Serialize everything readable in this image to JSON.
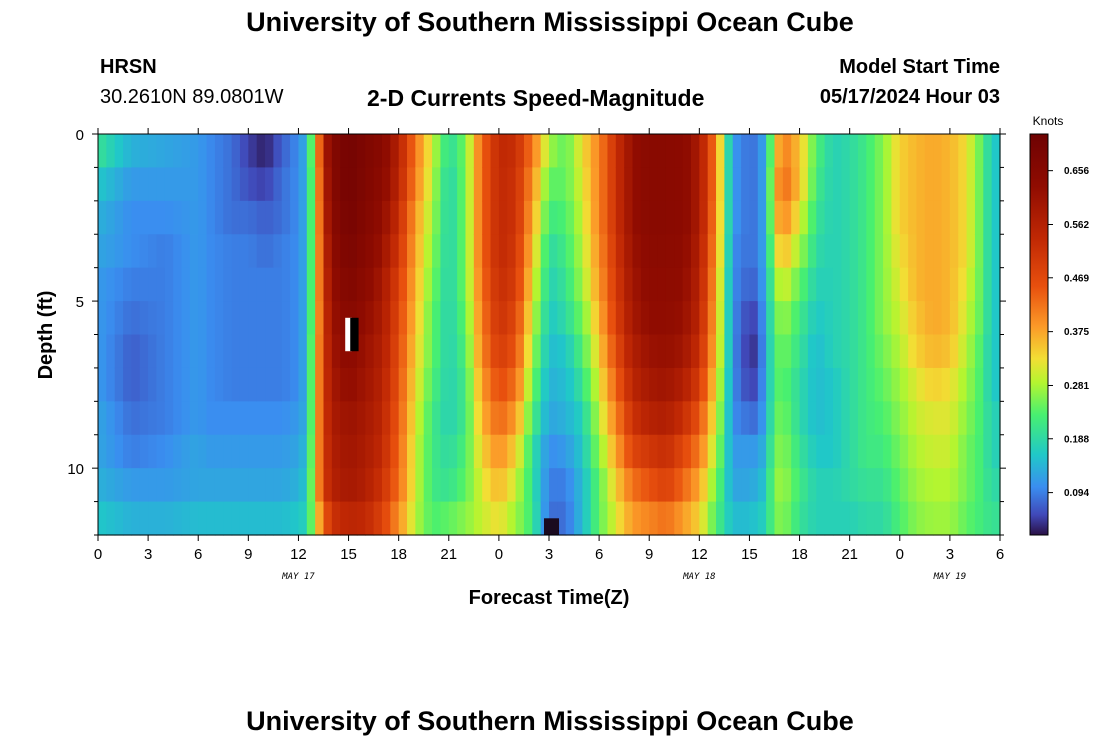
{
  "header": {
    "title": "University of Southern Mississippi Ocean Cube",
    "station": "HRSN",
    "coordinates": "30.2610N  89.0801W",
    "subtitle": "2-D Currents Speed-Magnitude",
    "model_start_label": "Model Start Time",
    "model_start_value": "05/17/2024 Hour 03"
  },
  "footer": {
    "title": "University of Southern Mississippi Ocean Cube"
  },
  "chart_data": {
    "type": "heatmap",
    "xlabel": "Forecast Time(Z)",
    "ylabel": "Depth (ft)",
    "x_tick_labels": [
      "0",
      "3",
      "6",
      "9",
      "12",
      "15",
      "18",
      "21",
      "0",
      "3",
      "6",
      "9",
      "12",
      "15",
      "18",
      "21",
      "0",
      "3",
      "6"
    ],
    "date_labels": [
      {
        "text": "MAY 17",
        "at_hour": 12
      },
      {
        "text": "MAY 18",
        "at_hour": 36
      },
      {
        "text": "MAY 19",
        "at_hour": 51
      }
    ],
    "xlim_hours": [
      0,
      54
    ],
    "y_ticks": [
      0,
      5,
      10
    ],
    "ylim_ft": [
      0,
      12
    ],
    "colorbar": {
      "unit": "Knots",
      "ticks": [
        0.094,
        0.188,
        0.281,
        0.375,
        0.469,
        0.562,
        0.656
      ],
      "range": [
        0.02,
        0.72
      ]
    },
    "depth_rows_ft": [
      0.5,
      1.5,
      2.5,
      3.5,
      4.5,
      5.5,
      6.5,
      7.5,
      8.5,
      9.5,
      10.5,
      11.5
    ],
    "profile_keys_hours": [
      0,
      2,
      4,
      6,
      6.5,
      8,
      9,
      10,
      11,
      12,
      12.5,
      13,
      13.5,
      14,
      15,
      16,
      17,
      18,
      19,
      20,
      21,
      22,
      23,
      24,
      25,
      26,
      27,
      28,
      29,
      30,
      31,
      32,
      33,
      34,
      35,
      36,
      37,
      37.5,
      38,
      39,
      39.5,
      40,
      40.5,
      41,
      42,
      43,
      44,
      45,
      46,
      47,
      48,
      49,
      50,
      51,
      52,
      53,
      53.5,
      54
    ],
    "profiles_knots": [
      [
        0.18,
        0.15,
        0.13,
        0.12,
        0.11,
        0.11,
        0.11,
        0.11,
        0.12,
        0.12,
        0.13,
        0.15
      ],
      [
        0.13,
        0.11,
        0.1,
        0.1,
        0.09,
        0.08,
        0.07,
        0.07,
        0.08,
        0.09,
        0.11,
        0.13
      ],
      [
        0.12,
        0.11,
        0.1,
        0.09,
        0.09,
        0.09,
        0.09,
        0.09,
        0.09,
        0.1,
        0.11,
        0.13
      ],
      [
        0.11,
        0.11,
        0.11,
        0.11,
        0.11,
        0.11,
        0.11,
        0.11,
        0.11,
        0.12,
        0.12,
        0.14
      ],
      [
        0.1,
        0.1,
        0.1,
        0.1,
        0.1,
        0.1,
        0.1,
        0.1,
        0.1,
        0.11,
        0.12,
        0.14
      ],
      [
        0.08,
        0.08,
        0.08,
        0.09,
        0.09,
        0.09,
        0.09,
        0.09,
        0.1,
        0.11,
        0.12,
        0.14
      ],
      [
        0.05,
        0.06,
        0.08,
        0.09,
        0.09,
        0.09,
        0.09,
        0.09,
        0.1,
        0.11,
        0.12,
        0.14
      ],
      [
        0.03,
        0.05,
        0.07,
        0.08,
        0.09,
        0.09,
        0.09,
        0.09,
        0.1,
        0.11,
        0.12,
        0.14
      ],
      [
        0.07,
        0.08,
        0.08,
        0.09,
        0.09,
        0.09,
        0.09,
        0.09,
        0.1,
        0.11,
        0.12,
        0.14
      ],
      [
        0.1,
        0.1,
        0.1,
        0.1,
        0.1,
        0.1,
        0.1,
        0.1,
        0.11,
        0.12,
        0.13,
        0.15
      ],
      [
        0.13,
        0.13,
        0.13,
        0.13,
        0.13,
        0.13,
        0.13,
        0.13,
        0.13,
        0.14,
        0.15,
        0.16
      ],
      [
        0.28,
        0.27,
        0.27,
        0.27,
        0.27,
        0.27,
        0.28,
        0.28,
        0.28,
        0.28,
        0.28,
        0.26
      ],
      [
        0.48,
        0.47,
        0.46,
        0.45,
        0.45,
        0.44,
        0.44,
        0.44,
        0.44,
        0.44,
        0.44,
        0.38
      ],
      [
        0.62,
        0.61,
        0.6,
        0.58,
        0.56,
        0.55,
        0.54,
        0.53,
        0.52,
        0.51,
        0.5,
        0.46
      ],
      [
        0.69,
        0.69,
        0.68,
        0.66,
        0.64,
        0.61,
        0.59,
        0.57,
        0.55,
        0.54,
        0.53,
        0.49
      ],
      [
        0.65,
        0.64,
        0.63,
        0.61,
        0.59,
        0.57,
        0.55,
        0.54,
        0.53,
        0.52,
        0.51,
        0.48
      ],
      [
        0.6,
        0.59,
        0.57,
        0.55,
        0.53,
        0.52,
        0.51,
        0.5,
        0.49,
        0.48,
        0.46,
        0.43
      ],
      [
        0.5,
        0.49,
        0.47,
        0.45,
        0.43,
        0.42,
        0.41,
        0.4,
        0.39,
        0.38,
        0.37,
        0.34
      ],
      [
        0.36,
        0.35,
        0.33,
        0.32,
        0.31,
        0.3,
        0.29,
        0.28,
        0.27,
        0.26,
        0.26,
        0.25
      ],
      [
        0.26,
        0.25,
        0.24,
        0.23,
        0.22,
        0.21,
        0.21,
        0.2,
        0.19,
        0.19,
        0.19,
        0.2
      ],
      [
        0.17,
        0.16,
        0.16,
        0.16,
        0.16,
        0.16,
        0.16,
        0.16,
        0.16,
        0.17,
        0.18,
        0.21
      ],
      [
        0.22,
        0.22,
        0.22,
        0.22,
        0.22,
        0.21,
        0.2,
        0.19,
        0.19,
        0.2,
        0.21,
        0.23
      ],
      [
        0.38,
        0.38,
        0.38,
        0.38,
        0.37,
        0.36,
        0.35,
        0.33,
        0.31,
        0.29,
        0.27,
        0.26
      ],
      [
        0.48,
        0.48,
        0.48,
        0.48,
        0.47,
        0.46,
        0.44,
        0.41,
        0.38,
        0.34,
        0.31,
        0.28
      ],
      [
        0.47,
        0.46,
        0.46,
        0.45,
        0.44,
        0.42,
        0.4,
        0.37,
        0.33,
        0.29,
        0.26,
        0.24
      ],
      [
        0.36,
        0.34,
        0.32,
        0.3,
        0.28,
        0.26,
        0.24,
        0.22,
        0.2,
        0.18,
        0.18,
        0.19
      ],
      [
        0.24,
        0.21,
        0.19,
        0.17,
        0.16,
        0.15,
        0.14,
        0.13,
        0.12,
        0.1,
        0.09,
        0.08
      ],
      [
        0.21,
        0.21,
        0.2,
        0.19,
        0.18,
        0.17,
        0.15,
        0.14,
        0.13,
        0.11,
        0.09,
        0.08
      ],
      [
        0.28,
        0.27,
        0.26,
        0.25,
        0.24,
        0.22,
        0.2,
        0.18,
        0.16,
        0.15,
        0.14,
        0.14
      ],
      [
        0.35,
        0.35,
        0.35,
        0.34,
        0.33,
        0.31,
        0.29,
        0.27,
        0.25,
        0.23,
        0.21,
        0.21
      ],
      [
        0.46,
        0.46,
        0.46,
        0.45,
        0.44,
        0.43,
        0.41,
        0.38,
        0.35,
        0.32,
        0.29,
        0.27
      ],
      [
        0.56,
        0.56,
        0.56,
        0.55,
        0.54,
        0.53,
        0.51,
        0.49,
        0.46,
        0.42,
        0.37,
        0.33
      ],
      [
        0.6,
        0.6,
        0.6,
        0.59,
        0.58,
        0.57,
        0.55,
        0.53,
        0.5,
        0.45,
        0.4,
        0.35
      ],
      [
        0.6,
        0.6,
        0.6,
        0.59,
        0.58,
        0.57,
        0.56,
        0.54,
        0.51,
        0.47,
        0.43,
        0.37
      ],
      [
        0.59,
        0.59,
        0.59,
        0.58,
        0.57,
        0.56,
        0.54,
        0.51,
        0.47,
        0.42,
        0.38,
        0.33
      ],
      [
        0.52,
        0.52,
        0.52,
        0.51,
        0.5,
        0.49,
        0.47,
        0.44,
        0.4,
        0.36,
        0.32,
        0.29
      ],
      [
        0.35,
        0.35,
        0.34,
        0.33,
        0.32,
        0.31,
        0.3,
        0.28,
        0.26,
        0.24,
        0.22,
        0.2
      ],
      [
        0.22,
        0.22,
        0.22,
        0.22,
        0.21,
        0.21,
        0.21,
        0.2,
        0.19,
        0.18,
        0.17,
        0.17
      ],
      [
        0.11,
        0.11,
        0.11,
        0.1,
        0.1,
        0.1,
        0.1,
        0.1,
        0.1,
        0.11,
        0.12,
        0.14
      ],
      [
        0.08,
        0.08,
        0.08,
        0.08,
        0.07,
        0.05,
        0.04,
        0.05,
        0.08,
        0.11,
        0.12,
        0.14
      ],
      [
        0.09,
        0.09,
        0.09,
        0.09,
        0.08,
        0.06,
        0.05,
        0.06,
        0.08,
        0.11,
        0.13,
        0.15
      ],
      [
        0.13,
        0.13,
        0.13,
        0.13,
        0.13,
        0.13,
        0.13,
        0.13,
        0.13,
        0.14,
        0.15,
        0.16
      ],
      [
        0.28,
        0.3,
        0.29,
        0.26,
        0.23,
        0.21,
        0.2,
        0.2,
        0.21,
        0.22,
        0.23,
        0.22
      ],
      [
        0.36,
        0.38,
        0.35,
        0.31,
        0.27,
        0.24,
        0.22,
        0.21,
        0.22,
        0.23,
        0.24,
        0.23
      ],
      [
        0.3,
        0.3,
        0.27,
        0.24,
        0.21,
        0.19,
        0.18,
        0.17,
        0.17,
        0.18,
        0.19,
        0.18
      ],
      [
        0.2,
        0.19,
        0.18,
        0.17,
        0.16,
        0.15,
        0.14,
        0.14,
        0.14,
        0.15,
        0.16,
        0.16
      ],
      [
        0.16,
        0.16,
        0.16,
        0.16,
        0.16,
        0.16,
        0.16,
        0.15,
        0.15,
        0.15,
        0.16,
        0.16
      ],
      [
        0.17,
        0.17,
        0.17,
        0.17,
        0.17,
        0.17,
        0.17,
        0.17,
        0.17,
        0.17,
        0.17,
        0.16
      ],
      [
        0.19,
        0.19,
        0.19,
        0.19,
        0.19,
        0.19,
        0.19,
        0.19,
        0.19,
        0.19,
        0.18,
        0.17
      ],
      [
        0.23,
        0.23,
        0.23,
        0.23,
        0.23,
        0.23,
        0.22,
        0.21,
        0.2,
        0.19,
        0.18,
        0.17
      ],
      [
        0.29,
        0.29,
        0.29,
        0.28,
        0.27,
        0.26,
        0.25,
        0.24,
        0.23,
        0.22,
        0.21,
        0.2
      ],
      [
        0.31,
        0.31,
        0.31,
        0.31,
        0.31,
        0.3,
        0.29,
        0.27,
        0.26,
        0.25,
        0.24,
        0.23
      ],
      [
        0.32,
        0.32,
        0.32,
        0.32,
        0.32,
        0.32,
        0.31,
        0.29,
        0.27,
        0.26,
        0.25,
        0.24
      ],
      [
        0.31,
        0.31,
        0.31,
        0.31,
        0.31,
        0.31,
        0.3,
        0.28,
        0.27,
        0.26,
        0.25,
        0.24
      ],
      [
        0.28,
        0.28,
        0.28,
        0.28,
        0.27,
        0.26,
        0.25,
        0.24,
        0.23,
        0.22,
        0.22,
        0.21
      ],
      [
        0.2,
        0.2,
        0.2,
        0.2,
        0.2,
        0.2,
        0.19,
        0.19,
        0.19,
        0.19,
        0.19,
        0.19
      ],
      [
        0.15,
        0.15,
        0.15,
        0.15,
        0.15,
        0.15,
        0.15,
        0.15,
        0.16,
        0.16,
        0.17,
        0.18
      ],
      [
        0.15,
        0.15,
        0.15,
        0.15,
        0.15,
        0.15,
        0.15,
        0.15,
        0.16,
        0.16,
        0.17,
        0.18
      ]
    ],
    "markers": [
      {
        "color": "#ffffff",
        "hour_start": 14.8,
        "hour_end": 15.2,
        "depth_start_ft": 5.5,
        "depth_end_ft": 6.5
      },
      {
        "color": "#000000",
        "hour_start": 15.1,
        "hour_end": 15.6,
        "depth_start_ft": 5.5,
        "depth_end_ft": 6.5
      },
      {
        "color": "#1a0a20",
        "hour_start": 26.7,
        "hour_end": 27.6,
        "depth_start_ft": 11.5,
        "depth_end_ft": 12
      }
    ]
  }
}
